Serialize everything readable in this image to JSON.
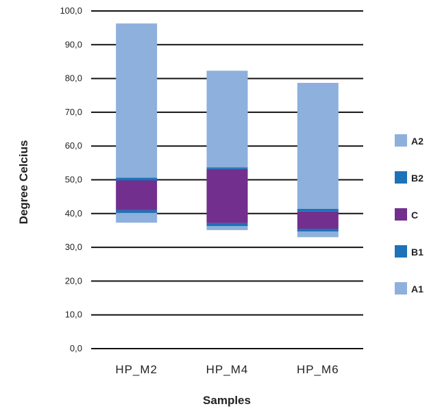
{
  "chart_data": {
    "type": "bar",
    "stacked": true,
    "floating_base": true,
    "title": "",
    "xlabel": "Samples",
    "ylabel": "Degree Celcius",
    "ylim": [
      0,
      100
    ],
    "ytick_step": 10,
    "ytick_labels": [
      "0,0",
      "10,0",
      "20,0",
      "30,0",
      "40,0",
      "50,0",
      "60,0",
      "70,0",
      "80,0",
      "90,0",
      "100,0"
    ],
    "grid": true,
    "legend_position": "right",
    "categories": [
      "HP_M2",
      "HP_M4",
      "HP_M6"
    ],
    "base": [
      37.3,
      35.1,
      33.0
    ],
    "series": [
      {
        "name": "A1",
        "color": "#8eb0dc",
        "values": [
          2.9,
          1.2,
          1.7
        ]
      },
      {
        "name": "B1",
        "color": "#1d72b8",
        "values": [
          0.8,
          0.9,
          0.8
        ]
      },
      {
        "name": "C",
        "color": "#722f8e",
        "values": [
          8.8,
          16.0,
          5.1
        ]
      },
      {
        "name": "B2",
        "color": "#1d72b8",
        "values": [
          0.8,
          0.5,
          0.8
        ]
      },
      {
        "name": "A2",
        "color": "#8eb0dc",
        "values": [
          45.7,
          28.6,
          37.3
        ]
      }
    ]
  }
}
